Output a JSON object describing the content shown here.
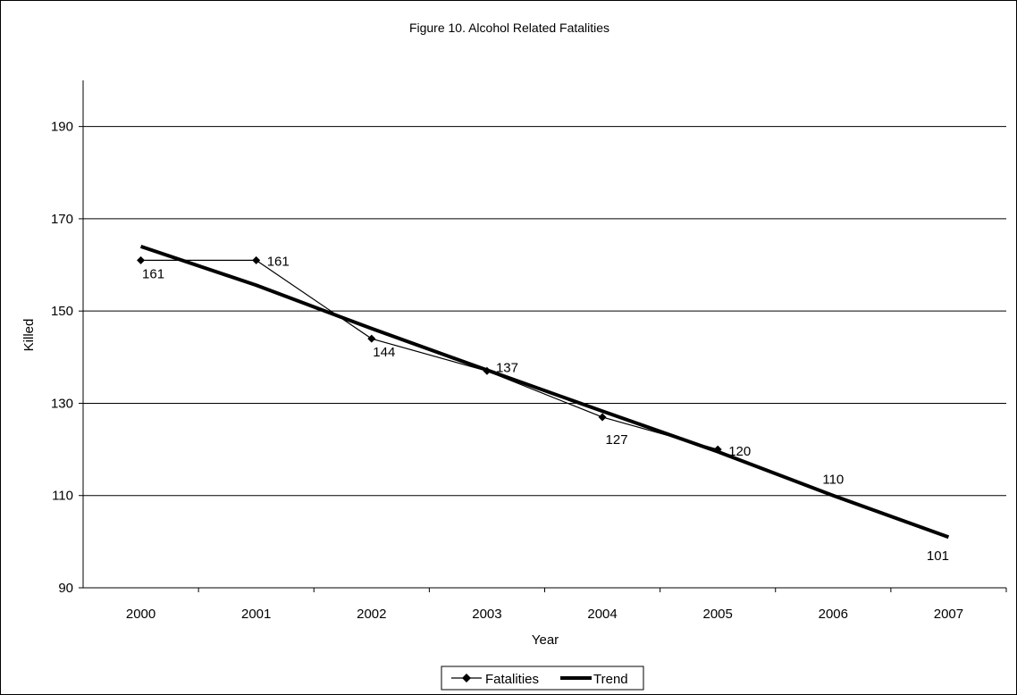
{
  "chart_data": {
    "type": "line",
    "title": "Figure 10. Alcohol Related Fatalities",
    "xlabel": "Year",
    "ylabel": "Killed",
    "categories": [
      "2000",
      "2001",
      "2002",
      "2003",
      "2004",
      "2005",
      "2006",
      "2007"
    ],
    "ylim": [
      90,
      200
    ],
    "yticks": [
      90,
      110,
      130,
      150,
      170,
      190
    ],
    "grid": "horizontal",
    "legend_position": "bottom",
    "series": [
      {
        "name": "Fatalities",
        "values": [
          161,
          161,
          144,
          137,
          127,
          120,
          null,
          null
        ],
        "marker": "diamond",
        "color": "#000000"
      },
      {
        "name": "Trend",
        "values": [
          164.0,
          155.6,
          146.2,
          137.2,
          128.3,
          119.5,
          110,
          101
        ],
        "color": "#000000"
      }
    ],
    "data_labels": [
      {
        "x": "2000",
        "text": "161"
      },
      {
        "x": "2001",
        "text": "161"
      },
      {
        "x": "2002",
        "text": "144"
      },
      {
        "x": "2003",
        "text": "137"
      },
      {
        "x": "2004",
        "text": "127"
      },
      {
        "x": "2005",
        "text": "120"
      },
      {
        "x": "2006",
        "text": "110"
      },
      {
        "x": "2007",
        "text": "101"
      }
    ]
  }
}
